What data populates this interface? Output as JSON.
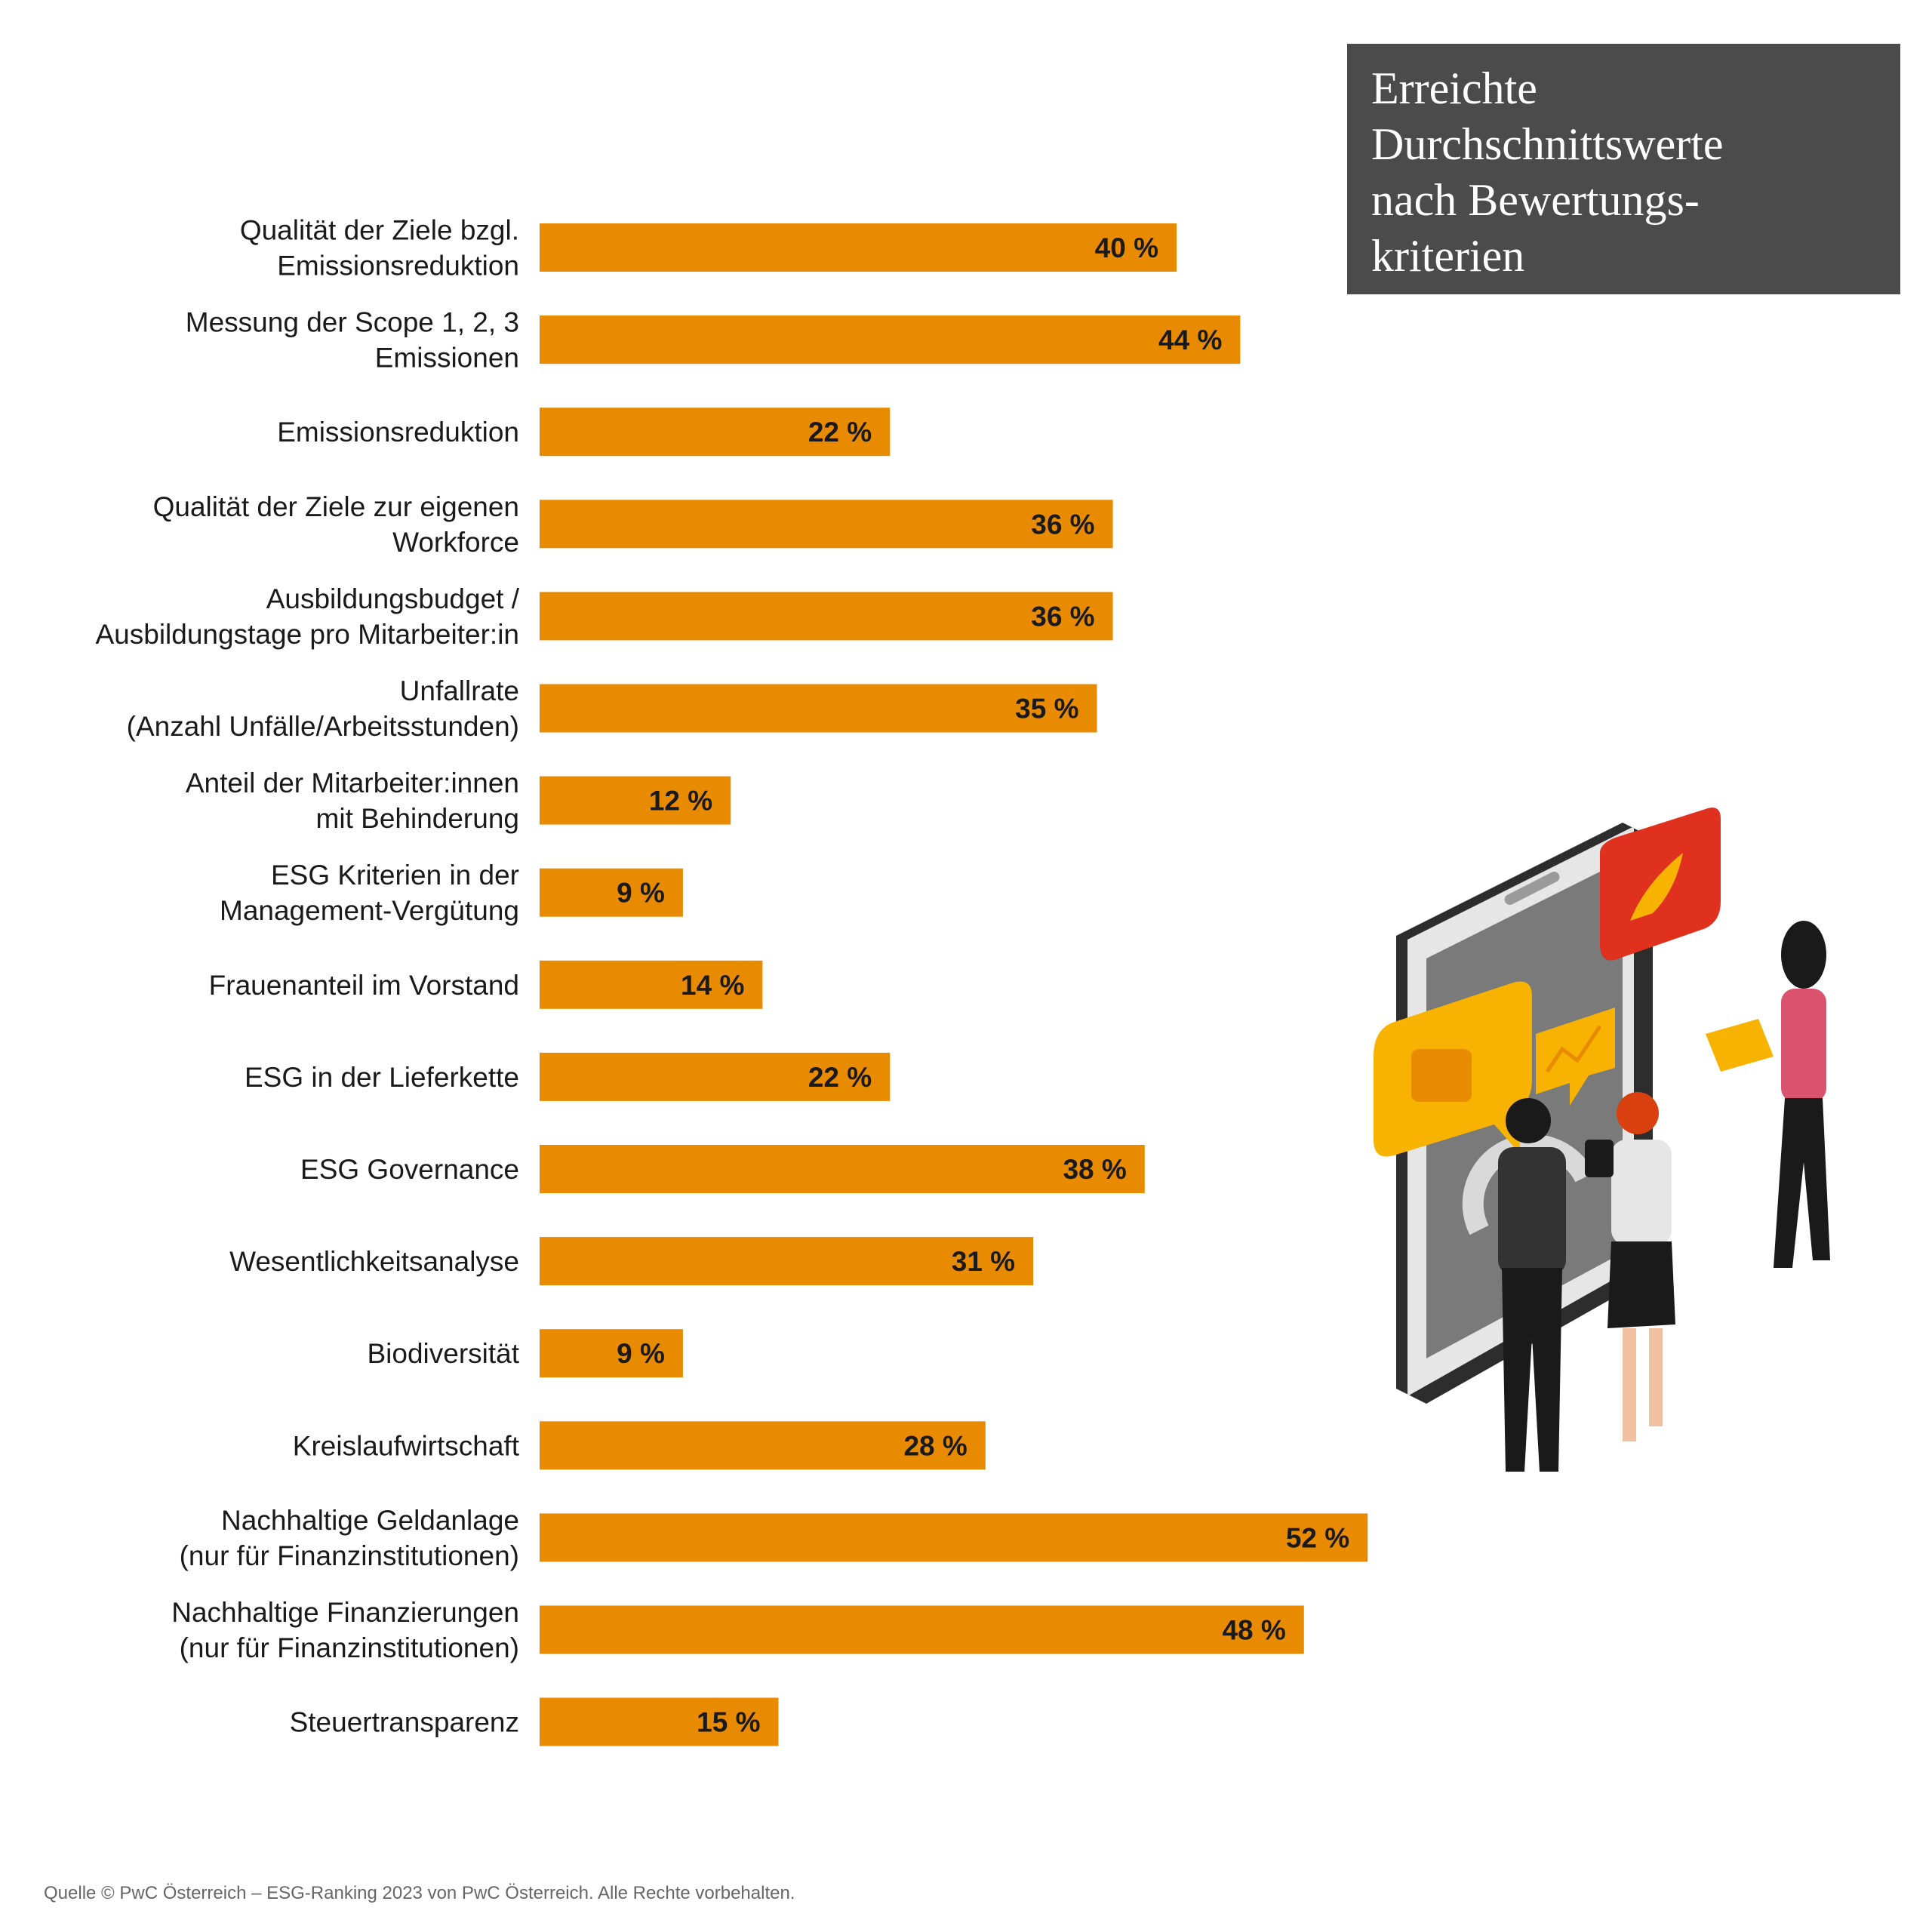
{
  "title_lines": [
    "Erreichte",
    "Durchschnittswerte",
    "nach Bewertungs-",
    "kriterien"
  ],
  "footer": "Quelle © PwC Österreich – ESG-Ranking 2023 von PwC Österreich. Alle Rechte vorbehalten.",
  "colors": {
    "bar": "#e98b00",
    "title_box": "#4b4b4b"
  },
  "illustration_icon": "isometric-smartphone-team-illustration",
  "chart_data": {
    "type": "bar",
    "orientation": "horizontal",
    "categories": [
      [
        "Qualität der Ziele bzgl.",
        "Emissionsreduktion"
      ],
      [
        "Messung der Scope 1, 2, 3",
        "Emissionen"
      ],
      [
        "Emissionsreduktion"
      ],
      [
        "Qualität der Ziele zur eigenen",
        "Workforce"
      ],
      [
        "Ausbildungsbudget /",
        "Ausbildungstage pro Mitarbeiter:in"
      ],
      [
        "Unfallrate",
        "(Anzahl Unfälle/Arbeitsstunden)"
      ],
      [
        "Anteil der Mitarbeiter:innen",
        "mit Behinderung"
      ],
      [
        "ESG Kriterien in der",
        "Management-Vergütung"
      ],
      [
        "Frauenanteil im Vorstand"
      ],
      [
        "ESG in der Lieferkette"
      ],
      [
        "ESG Governance"
      ],
      [
        "Wesentlichkeitsanalyse"
      ],
      [
        "Biodiversität"
      ],
      [
        "Kreislaufwirtschaft"
      ],
      [
        "Nachhaltige Geldanlage",
        "(nur für Finanzinstitutionen)"
      ],
      [
        "Nachhaltige Finanzierungen",
        "(nur für Finanzinstitutionen)"
      ],
      [
        "Steuertransparenz"
      ]
    ],
    "values": [
      40,
      44,
      22,
      36,
      36,
      35,
      12,
      9,
      14,
      22,
      38,
      31,
      9,
      28,
      52,
      48,
      15
    ],
    "value_labels": [
      "40 %",
      "44 %",
      "22 %",
      "36 %",
      "36 %",
      "35 %",
      "12 %",
      "9 %",
      "14 %",
      "22 %",
      "38 %",
      "31 %",
      "9 %",
      "28 %",
      "52 %",
      "48 %",
      "15 %"
    ],
    "xlim": [
      0,
      100
    ],
    "grid": false,
    "legend": "none"
  }
}
